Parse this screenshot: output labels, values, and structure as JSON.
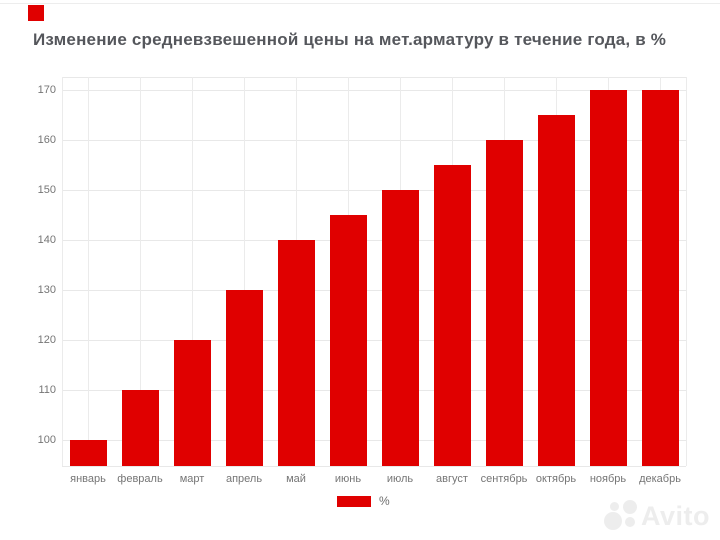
{
  "colors": {
    "accent_red": "#e00000",
    "grid": "#e8e8e8",
    "axis_text": "#757575",
    "title_text": "#55575c",
    "watermark": "#ededed"
  },
  "chart_data": {
    "type": "bar",
    "title": "Изменение средневзвешенной цены на мет.арматуру в течение года, в %",
    "categories": [
      "январь",
      "февраль",
      "март",
      "апрель",
      "май",
      "июнь",
      "июль",
      "август",
      "сентябрь",
      "октябрь",
      "ноябрь",
      "декабрь"
    ],
    "series": [
      {
        "name": "%",
        "color": "#e00000",
        "values": [
          100,
          110,
          120,
          130,
          140,
          145,
          150,
          155,
          160,
          165,
          170,
          170
        ]
      }
    ],
    "xlabel": "",
    "ylabel": "",
    "yticks": [
      100,
      110,
      120,
      130,
      140,
      150,
      160,
      170
    ],
    "ylim": [
      95,
      172.5
    ],
    "grid": true,
    "legend_position": "bottom"
  },
  "watermark": {
    "text": "Avito"
  }
}
